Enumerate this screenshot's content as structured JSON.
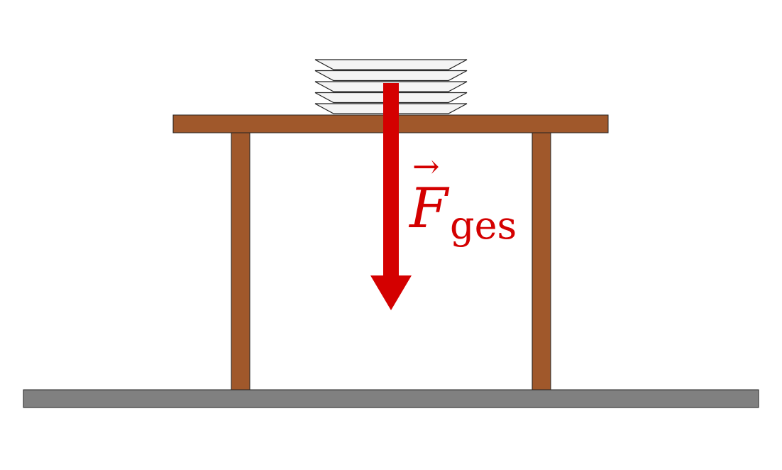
{
  "colors": {
    "wood": "#a0582b",
    "floor": "#808080",
    "force": "#d40000",
    "plate": "#f4f4f4",
    "outline": "#222222"
  },
  "plates": {
    "count": 5
  },
  "force": {
    "symbol": "F",
    "subscript": "ges",
    "vector_arrow": "→"
  }
}
